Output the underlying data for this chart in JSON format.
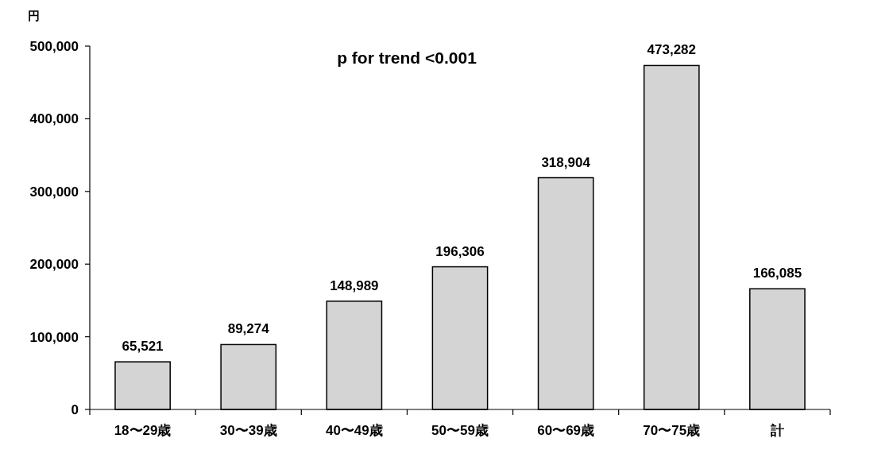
{
  "chart_data": {
    "type": "bar",
    "ylabel": "円",
    "annotations": [
      "p for trend <0.001"
    ],
    "categories": [
      "18〜29歳",
      "30〜39歳",
      "40〜49歳",
      "50〜59歳",
      "60〜69歳",
      "70〜75歳",
      "計"
    ],
    "values": [
      65521,
      89274,
      148989,
      196306,
      318904,
      473282,
      166085
    ],
    "color": "#d4d4d4",
    "value_labels": [
      "65,521",
      "89,274",
      "148,989",
      "196,306",
      "318,904",
      "473,282",
      "166,085"
    ],
    "ylim": [
      0,
      500000
    ],
    "yticks": [
      0,
      {
        "value": 100000,
        "label": "100,000"
      },
      {
        "value": 200000,
        "label": "200,000"
      },
      {
        "value": 300000,
        "label": "300,000"
      },
      {
        "value": 400000,
        "label": "400,000"
      },
      {
        "value": 500000,
        "label": "500,000"
      }
    ]
  }
}
